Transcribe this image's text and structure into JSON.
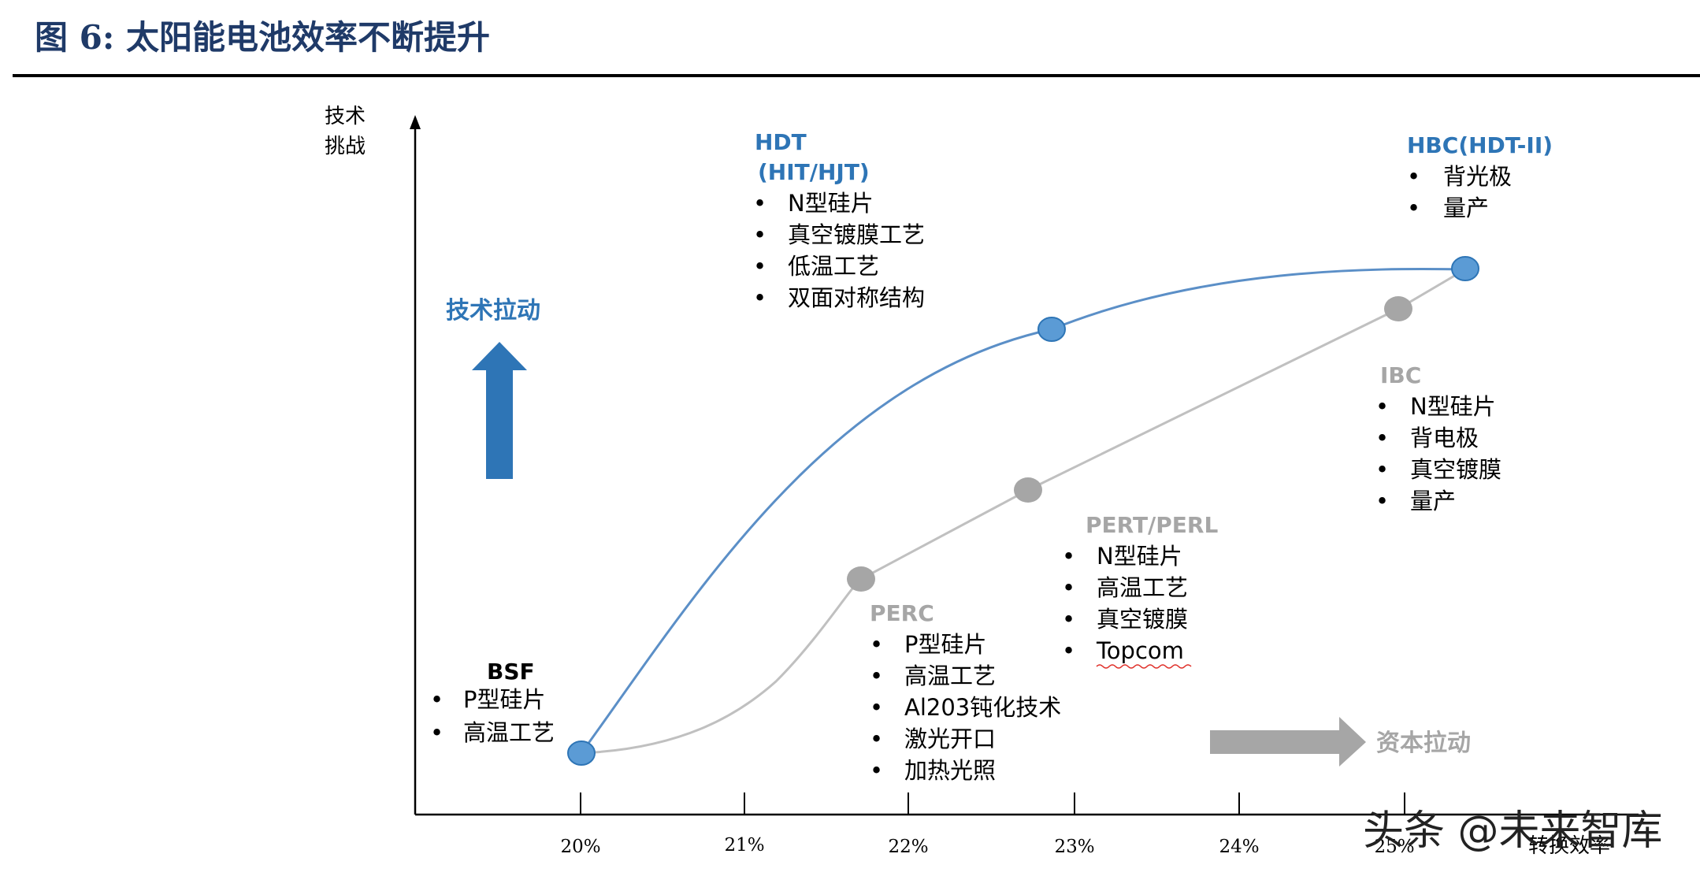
{
  "figure": {
    "title": "图 6:  太阳能电池效率不断提升"
  },
  "axes": {
    "y_label_line1": "技术",
    "y_label_line2": "挑战",
    "x_label": "转换效率",
    "x_ticks": [
      "20%",
      "21%",
      "22%",
      "23%",
      "24%",
      "25%"
    ]
  },
  "pulls": {
    "tech": "技术拉动",
    "capital": "资本拉动"
  },
  "nodes": {
    "bsf": {
      "title": "BSF",
      "items": [
        "P型硅片",
        "高温工艺"
      ]
    },
    "hdt": {
      "title_line1": "HDT",
      "title_line2": "(HIT/HJT)",
      "items": [
        "N型硅片",
        "真空镀膜工艺",
        "低温工艺",
        "双面对称结构"
      ]
    },
    "hbc": {
      "title": "HBC(HDT-II)",
      "items": [
        "背光极",
        "量产"
      ]
    },
    "perc": {
      "title": "PERC",
      "items": [
        "P型硅片",
        "高温工艺",
        "Al203钝化技术",
        "激光开口",
        "加热光照"
      ]
    },
    "pert": {
      "title": "PERT/PERL",
      "items": [
        "N型硅片",
        "高温工艺",
        "真空镀膜",
        "Topcom"
      ]
    },
    "ibc": {
      "title": "IBC",
      "items": [
        "N型硅片",
        "背电极",
        "真空镀膜",
        "量产"
      ]
    }
  },
  "colors": {
    "blue": "#2E75B6",
    "gray": "#A6A6A6",
    "title": "#1F3A68",
    "arrow_blue": "#2E75B6",
    "arrow_gray": "#A6A6A6"
  },
  "icons": {
    "bullet": "•"
  },
  "watermark": "头条 @未来智库"
}
